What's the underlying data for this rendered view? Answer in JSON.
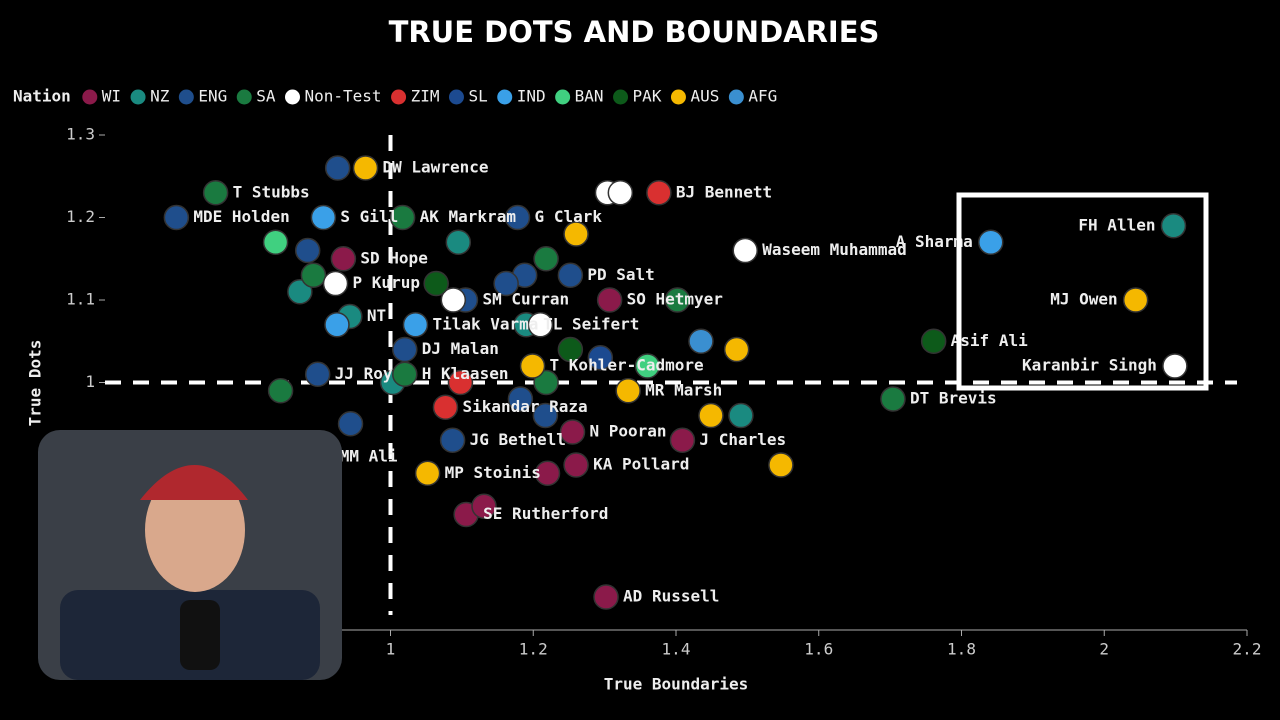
{
  "chart_data": {
    "type": "scatter",
    "title": "TRUE DOTS AND BOUNDARIES",
    "x_label": "True Boundaries",
    "y_label": "True Dots",
    "legend_title": "Nation",
    "xlim": [
      0.6,
      2.2
    ],
    "xticks": [
      1,
      1.2,
      1.4,
      1.6,
      1.8,
      2,
      2.2
    ],
    "ylim": [
      0.7,
      1.3
    ],
    "yticks": [
      1,
      1.1,
      1.2,
      1.3
    ],
    "reference_lines": {
      "x": 1,
      "y": 1
    },
    "series": [
      {
        "name": "WI",
        "color": "#8b1a4a",
        "x": [
          0.934,
          1.307,
          1.255,
          1.409,
          1.26,
          1.106,
          1.302,
          1.22,
          1.131
        ],
        "values": [
          1.15,
          1.1,
          0.94,
          0.93,
          0.9,
          0.84,
          0.74,
          0.89,
          0.85
        ],
        "labels": [
          "SD Hope",
          "SO Hetmyer",
          "N Pooran",
          "J Charles",
          "KA Pollard",
          "SE Rutherford",
          "AD Russell",
          null,
          null
        ]
      },
      {
        "name": "NZ",
        "color": "#1a8a80",
        "x": [
          2.097,
          0.943,
          1.19,
          0.873,
          1.095,
          1.491,
          1.003
        ],
        "values": [
          1.19,
          1.08,
          1.07,
          1.11,
          1.17,
          0.96,
          1.0
        ],
        "labels": [
          "FH Allen",
          "NT",
          "TL Seifert",
          null,
          null,
          null,
          null
        ]
      },
      {
        "name": "ENG",
        "color": "#1f4e8c",
        "x": [
          0.7,
          1.178,
          1.252,
          1.02,
          0.898,
          1.087,
          0.905,
          1.105,
          0.926,
          0.884,
          0.944,
          1.188,
          1.162,
          1.217,
          1.182
        ],
        "values": [
          1.2,
          1.2,
          1.13,
          1.04,
          1.01,
          0.93,
          0.91,
          1.1,
          1.26,
          1.16,
          0.95,
          1.13,
          1.12,
          0.96,
          0.98
        ],
        "labels": [
          "MDE Holden",
          "G Clark",
          "PD Salt",
          "DJ Malan",
          "JJ Roy",
          "JG Bethell",
          "MM Ali",
          "SM Curran",
          null,
          null,
          null,
          null,
          null,
          null,
          null
        ]
      },
      {
        "name": "SA",
        "color": "#1a7a40",
        "x": [
          0.755,
          1.017,
          1.02,
          1.704,
          0.892,
          1.218,
          1.402,
          0.846,
          1.218
        ],
        "values": [
          1.23,
          1.2,
          1.01,
          0.98,
          1.13,
          1.15,
          1.1,
          0.99,
          1.0
        ],
        "labels": [
          "T Stubbs",
          "AK Markram",
          "H Klaasen",
          "DT Brevis",
          null,
          null,
          null,
          null,
          null
        ]
      },
      {
        "name": "Non-Test",
        "color": "#ffffff",
        "x": [
          1.497,
          0.923,
          2.099,
          1.304,
          1.322,
          1.088,
          1.21
        ],
        "values": [
          1.16,
          1.12,
          1.02,
          1.23,
          1.23,
          1.1,
          1.07
        ],
        "labels": [
          "Waseem Muhammad",
          "P Kurup",
          "Karanbir Singh",
          null,
          null,
          null,
          null
        ]
      },
      {
        "name": "ZIM",
        "color": "#d93030",
        "x": [
          1.376,
          1.077,
          1.098
        ],
        "values": [
          1.23,
          0.97,
          1.0
        ],
        "labels": [
          "BJ Bennett",
          "Sikandar Raza",
          null
        ]
      },
      {
        "name": "SL",
        "color": "#1c4a90",
        "x": [
          1.294
        ],
        "values": [
          1.03
        ],
        "labels": [
          null
        ]
      },
      {
        "name": "IND",
        "color": "#3aa0e8",
        "x": [
          0.906,
          1.841,
          1.035,
          0.925
        ],
        "values": [
          1.2,
          1.17,
          1.07,
          1.07
        ],
        "labels": [
          "S Gill",
          "A Sharma",
          "Tilak Varma",
          null
        ]
      },
      {
        "name": "BAN",
        "color": "#40d080",
        "x": [
          0.839,
          1.36
        ],
        "values": [
          1.17,
          1.02
        ],
        "labels": [
          null,
          null
        ]
      },
      {
        "name": "PAK",
        "color": "#0d5a1a",
        "x": [
          1.761,
          1.064,
          1.252
        ],
        "values": [
          1.05,
          1.12,
          1.04
        ],
        "labels": [
          "Asif Ali",
          null,
          null
        ]
      },
      {
        "name": "AUS",
        "color": "#f5b800",
        "x": [
          0.965,
          1.333,
          1.052,
          2.044,
          1.199,
          1.26,
          1.485,
          1.449,
          1.547
        ],
        "values": [
          1.26,
          0.99,
          0.89,
          1.1,
          1.02,
          1.18,
          1.04,
          0.96,
          0.9
        ],
        "labels": [
          "DW Lawrence",
          "MR Marsh",
          "MP Stoinis",
          "MJ Owen",
          "T Kohler-Cadmore",
          null,
          null,
          null,
          null
        ]
      },
      {
        "name": "AFG",
        "color": "#3a8fd0",
        "x": [
          1.435
        ],
        "values": [
          1.05
        ],
        "labels": [
          null
        ]
      }
    ]
  }
}
